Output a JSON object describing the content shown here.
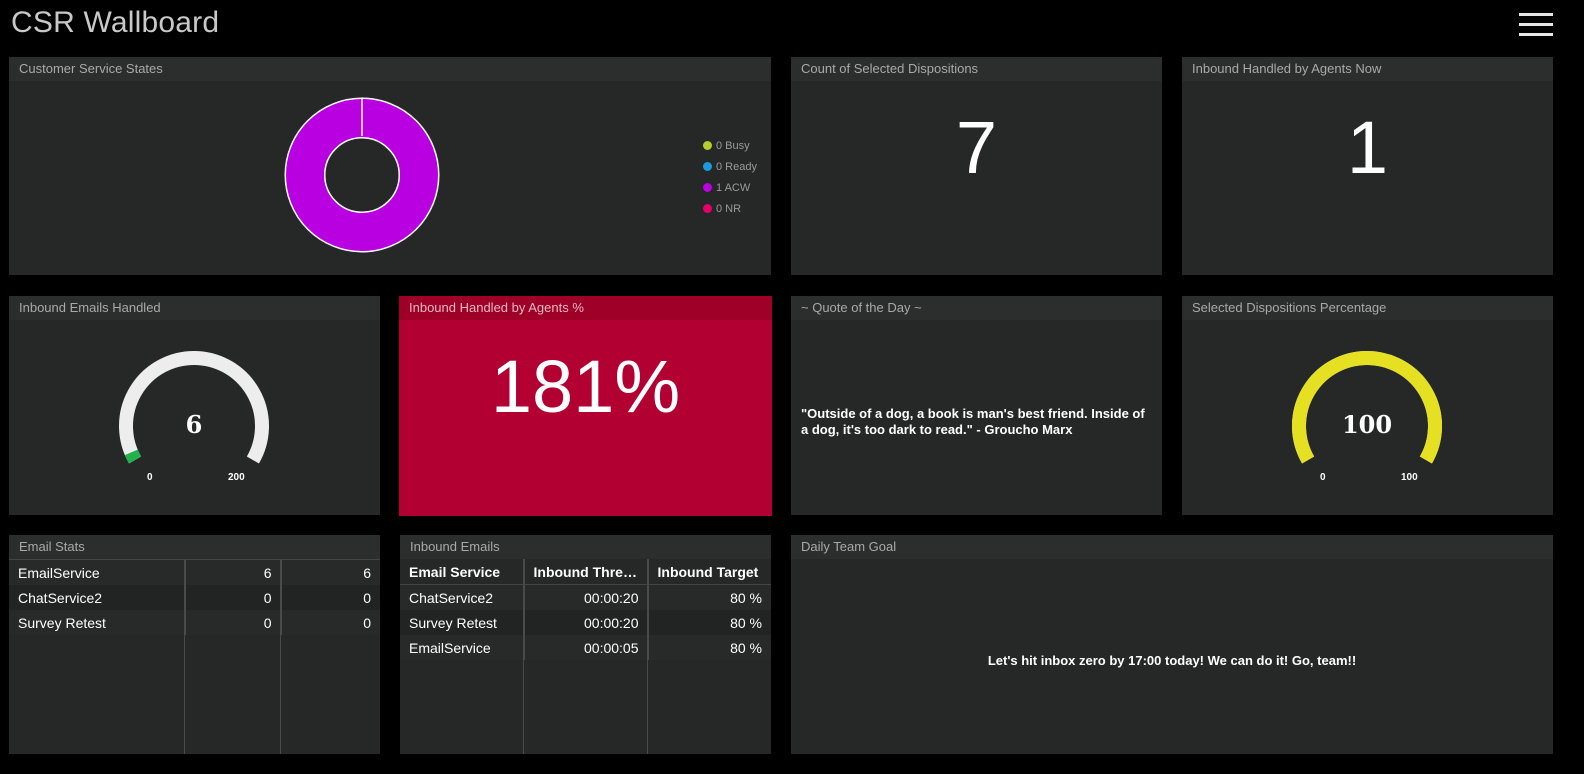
{
  "app": {
    "title": "CSR Wallboard"
  },
  "widgets": {
    "cs_states": {
      "title": "Customer Service States",
      "legend": [
        {
          "label": "0 Busy",
          "color": "#b5cc2c"
        },
        {
          "label": "0 Ready",
          "color": "#1a9be0"
        },
        {
          "label": "1 ACW",
          "color": "#b800e0"
        },
        {
          "label": "0 NR",
          "color": "#e6006e"
        }
      ]
    },
    "dispositions_count": {
      "title": "Count of Selected Dispositions",
      "value": "7"
    },
    "handled_now": {
      "title": "Inbound Handled by Agents Now",
      "value": "1"
    },
    "emails_handled": {
      "title": "Inbound Emails Handled",
      "value": "6",
      "min": "0",
      "max": "200",
      "fraction": 0.03,
      "color": "#22b24c"
    },
    "handled_pct": {
      "title": "Inbound Handled by Agents %",
      "value": "181%"
    },
    "quote": {
      "title": "~ Quote of the Day ~",
      "text": "\"Outside of a dog, a book is man's best friend. Inside of a dog, it's too dark to read.\" - Groucho Marx"
    },
    "dispositions_pct": {
      "title": "Selected Dispositions Percentage",
      "value": "100",
      "min": "0",
      "max": "100",
      "fraction": 1.0,
      "color": "#e6e022"
    },
    "email_stats": {
      "title": "Email Stats",
      "rows": [
        {
          "name": "EmailService",
          "a": "6",
          "b": "6"
        },
        {
          "name": "ChatService2",
          "a": "0",
          "b": "0"
        },
        {
          "name": "Survey Retest",
          "a": "0",
          "b": "0"
        }
      ]
    },
    "inbound_emails": {
      "title": "Inbound Emails",
      "columns": [
        "Email Service",
        "Inbound Thresh...",
        "Inbound Target"
      ],
      "rows": [
        {
          "service": "ChatService2",
          "threshold": "00:00:20",
          "target": "80 %"
        },
        {
          "service": "Survey Retest",
          "threshold": "00:00:20",
          "target": "80 %"
        },
        {
          "service": "EmailService",
          "threshold": "00:00:05",
          "target": "80 %"
        }
      ]
    },
    "team_goal": {
      "title": "Daily Team Goal",
      "text": "Let's hit inbox zero by 17:00 today! We can do it! Go, team!!"
    }
  }
}
